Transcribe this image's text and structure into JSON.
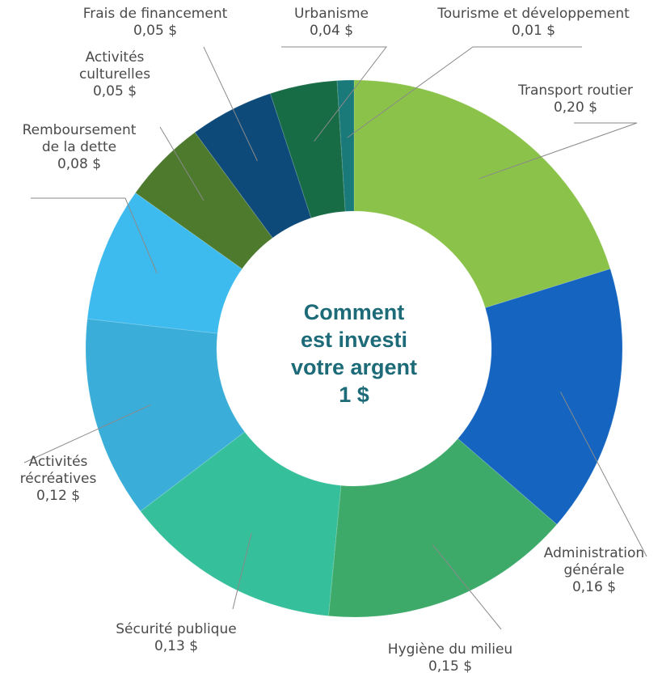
{
  "chart_data": {
    "type": "pie",
    "style": "donut",
    "center_text": [
      "Comment",
      "est investi",
      "votre argent",
      "1 $"
    ],
    "categories": [
      "Transport routier",
      "Administration générale",
      "Hygiène du milieu",
      "Sécurité publique",
      "Activités récréatives",
      "Remboursement de la dette",
      "Activités culturelles",
      "Frais de financement",
      "Urbanisme",
      "Tourisme et développement"
    ],
    "values": [
      0.2,
      0.16,
      0.15,
      0.13,
      0.12,
      0.08,
      0.05,
      0.05,
      0.04,
      0.01
    ],
    "labels": [
      {
        "lines": [
          "Transport routier"
        ],
        "value": "0,20 $"
      },
      {
        "lines": [
          "Administration",
          "générale"
        ],
        "value": "0,16 $"
      },
      {
        "lines": [
          "Hygiène du milieu"
        ],
        "value": "0,15 $"
      },
      {
        "lines": [
          "Sécurité publique"
        ],
        "value": "0,13 $"
      },
      {
        "lines": [
          "Activités",
          "récréatives"
        ],
        "value": "0,12 $"
      },
      {
        "lines": [
          "Remboursement",
          "de la dette"
        ],
        "value": "0,08 $"
      },
      {
        "lines": [
          "Activités",
          "culturelles"
        ],
        "value": "0,05 $"
      },
      {
        "lines": [
          "Frais de financement"
        ],
        "value": "0,05 $"
      },
      {
        "lines": [
          "Urbanisme"
        ],
        "value": "0,04 $"
      },
      {
        "lines": [
          "Tourisme et développement"
        ],
        "value": "0,01 $"
      }
    ],
    "colors": [
      "#8bc34a",
      "#1565c0",
      "#3daa6a",
      "#35bf9a",
      "#3aaed8",
      "#3dbbee",
      "#4e7a2e",
      "#0d4a7a",
      "#176b45",
      "#1a7a7a"
    ]
  }
}
